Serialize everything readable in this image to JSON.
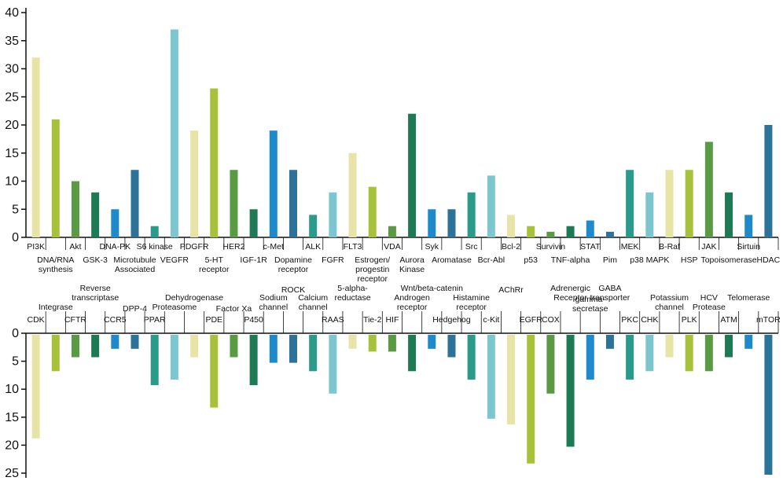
{
  "chart_data": [
    {
      "type": "bar",
      "ylim": [
        0,
        40
      ],
      "yticks": [
        0,
        5,
        10,
        15,
        20,
        25,
        30,
        35,
        40
      ],
      "categories": [
        {
          "label": "PI3K",
          "value": 32,
          "color": "#e8e4a8"
        },
        {
          "label": "DNA/RNA synthesis",
          "value": 21,
          "color": "#a7c23a"
        },
        {
          "label": "Akt",
          "value": 10,
          "color": "#5a9a45"
        },
        {
          "label": "GSK-3",
          "value": 8,
          "color": "#1e7a55"
        },
        {
          "label": "DNA-PK",
          "value": 5,
          "color": "#1e8acb"
        },
        {
          "label": "Microtubule Associated",
          "value": 12,
          "color": "#2d7298"
        },
        {
          "label": "S6 kinase",
          "value": 2,
          "color": "#2a9a8a"
        },
        {
          "label": "VEGFR",
          "value": 37,
          "color": "#7cc7cf"
        },
        {
          "label": "PDGFR",
          "value": 19,
          "color": "#e8e4a8"
        },
        {
          "label": "5-HT receptor",
          "value": 26.5,
          "color": "#a7c23a"
        },
        {
          "label": "HER2",
          "value": 12,
          "color": "#5a9a45"
        },
        {
          "label": "IGF-1R",
          "value": 5,
          "color": "#1e7a55"
        },
        {
          "label": "c-Met",
          "value": 19,
          "color": "#1e8acb"
        },
        {
          "label": "Dopamine receptor",
          "value": 12,
          "color": "#2d7298"
        },
        {
          "label": "ALK",
          "value": 4,
          "color": "#2a9a8a"
        },
        {
          "label": "FGFR",
          "value": 8,
          "color": "#7cc7cf"
        },
        {
          "label": "FLT3",
          "value": 15,
          "color": "#e8e4a8"
        },
        {
          "label": "Estrogen/ progestin receptor",
          "value": 9,
          "color": "#a7c23a"
        },
        {
          "label": "VDA",
          "value": 2,
          "color": "#5a9a45"
        },
        {
          "label": "Aurora Kinase",
          "value": 22,
          "color": "#1e7a55"
        },
        {
          "label": "Syk",
          "value": 5,
          "color": "#1e8acb"
        },
        {
          "label": "Aromatase",
          "value": 5,
          "color": "#2d7298"
        },
        {
          "label": "Src",
          "value": 8,
          "color": "#2a9a8a"
        },
        {
          "label": "Bcr-Abl",
          "value": 11,
          "color": "#7cc7cf"
        },
        {
          "label": "Bcl-2",
          "value": 4,
          "color": "#e8e4a8"
        },
        {
          "label": "p53",
          "value": 2,
          "color": "#a7c23a"
        },
        {
          "label": "Survivin",
          "value": 1,
          "color": "#5a9a45"
        },
        {
          "label": "TNF-alpha",
          "value": 2,
          "color": "#1e7a55"
        },
        {
          "label": "STAT",
          "value": 3,
          "color": "#1e8acb"
        },
        {
          "label": "Pim",
          "value": 1,
          "color": "#2d7298"
        },
        {
          "label": "MEK",
          "value": 12,
          "color": "#2a9a8a"
        },
        {
          "label": "p38 MAPK",
          "value": 8,
          "color": "#7cc7cf"
        },
        {
          "label": "B-Raf",
          "value": 12,
          "color": "#e8e4a8"
        },
        {
          "label": "HSP",
          "value": 12,
          "color": "#a7c23a"
        },
        {
          "label": "JAK",
          "value": 17,
          "color": "#5a9a45"
        },
        {
          "label": "Topoisomerase",
          "value": 8,
          "color": "#1e7a55"
        },
        {
          "label": "Sirtuin",
          "value": 4,
          "color": "#1e8acb"
        },
        {
          "label": "HDAC",
          "value": 20,
          "color": "#2d7298"
        }
      ]
    },
    {
      "type": "bar",
      "ylim": [
        0,
        25
      ],
      "yticks": [
        0,
        5,
        10,
        15,
        20,
        25
      ],
      "orientation": "downward",
      "categories": [
        {
          "label": "CDK",
          "value": 18.5,
          "color": "#e8e4a8"
        },
        {
          "label": "Integrase",
          "value": 6.5,
          "color": "#a7c23a"
        },
        {
          "label": "CFTR",
          "value": 4,
          "color": "#5a9a45"
        },
        {
          "label": "Reverse transcriptase",
          "value": 4,
          "color": "#1e7a55"
        },
        {
          "label": "CCR5",
          "value": 2.5,
          "color": "#1e8acb"
        },
        {
          "label": "DPP-4",
          "value": 2.5,
          "color": "#2d7298"
        },
        {
          "label": "PPAR",
          "value": 9,
          "color": "#2a9a8a"
        },
        {
          "label": "Proteasome",
          "value": 8,
          "color": "#7cc7cf"
        },
        {
          "label": "Dehydrogenase",
          "value": 4,
          "color": "#e8e4a8"
        },
        {
          "label": "PDE",
          "value": 13,
          "color": "#a7c23a"
        },
        {
          "label": "Factor Xa",
          "value": 4,
          "color": "#5a9a45"
        },
        {
          "label": "P450",
          "value": 9,
          "color": "#1e7a55"
        },
        {
          "label": "Sodium channel",
          "value": 5,
          "color": "#1e8acb"
        },
        {
          "label": "ROCK",
          "value": 5,
          "color": "#2d7298"
        },
        {
          "label": "Calcium channel",
          "value": 6.5,
          "color": "#2a9a8a"
        },
        {
          "label": "RAAS",
          "value": 10.5,
          "color": "#7cc7cf"
        },
        {
          "label": "5-alpha-reductase",
          "value": 2.5,
          "color": "#e8e4a8"
        },
        {
          "label": "Tie-2",
          "value": 3,
          "color": "#a7c23a"
        },
        {
          "label": "HIF",
          "value": 3,
          "color": "#5a9a45"
        },
        {
          "label": "Androgen receptor",
          "value": 6.5,
          "color": "#1e7a55"
        },
        {
          "label": "Wnt/beta-catenin",
          "value": 2.5,
          "color": "#1e8acb"
        },
        {
          "label": "Hedgehog",
          "value": 4,
          "color": "#2d7298"
        },
        {
          "label": "Histamine receptor",
          "value": 8,
          "color": "#2a9a8a"
        },
        {
          "label": "c-Kit",
          "value": 15,
          "color": "#7cc7cf"
        },
        {
          "label": "AChRr",
          "value": 16,
          "color": "#e8e4a8"
        },
        {
          "label": "EGFR",
          "value": 23,
          "color": "#a7c23a"
        },
        {
          "label": "COX",
          "value": 10.5,
          "color": "#5a9a45"
        },
        {
          "label": "Adrenergic Receptor",
          "value": 20,
          "color": "#1e7a55"
        },
        {
          "label": "gamma-secretase",
          "value": 8,
          "color": "#1e8acb"
        },
        {
          "label": "GABA transporter",
          "value": 2.5,
          "color": "#2d7298"
        },
        {
          "label": "PKC",
          "value": 8,
          "color": "#2a9a8a"
        },
        {
          "label": "CHK",
          "value": 6.5,
          "color": "#7cc7cf"
        },
        {
          "label": "Potassium channel",
          "value": 4,
          "color": "#e8e4a8"
        },
        {
          "label": "PLK",
          "value": 6.5,
          "color": "#a7c23a"
        },
        {
          "label": "HCV Protease",
          "value": 6.5,
          "color": "#5a9a45"
        },
        {
          "label": "ATM",
          "value": 4,
          "color": "#1e7a55"
        },
        {
          "label": "Telomerase",
          "value": 2.5,
          "color": "#1e8acb"
        },
        {
          "label": "mTOR",
          "value": 25,
          "color": "#2d7298"
        }
      ]
    }
  ]
}
